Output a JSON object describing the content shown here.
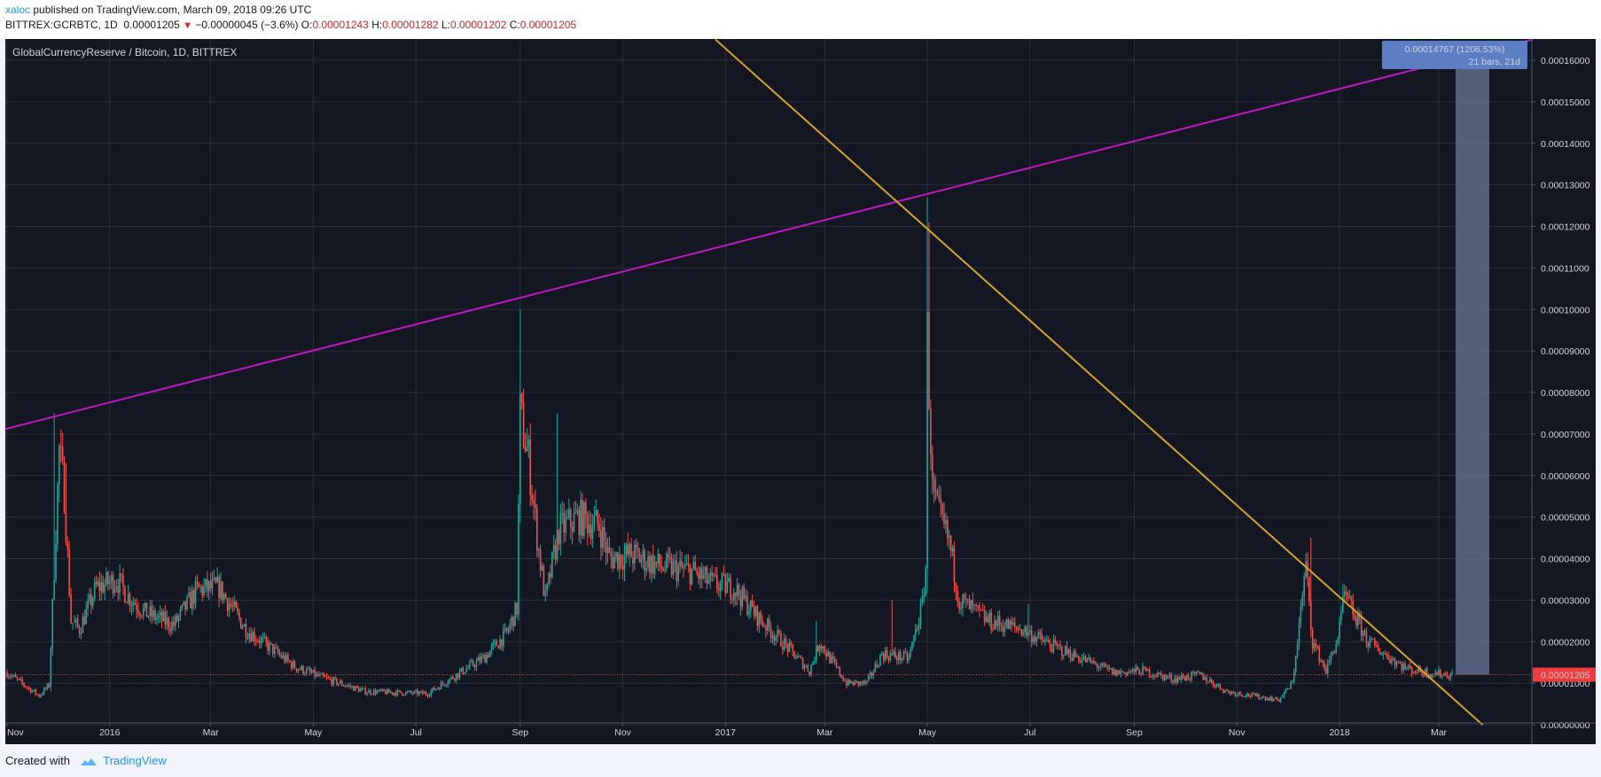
{
  "header": {
    "author": "xaloc",
    "published": " published on TradingView.com, March 09, 2018 09:26 UTC",
    "symbol": "BITTREX:GCRBTC, 1D",
    "last": "0.00001205",
    "change_arrow": "▼",
    "change": "−0.00000045 (−3.6%)",
    "o_label": "O:",
    "o_value": "0.00001243",
    "h_label": "H:",
    "h_value": "0.00001282",
    "l_label": "L:",
    "l_value": "0.00001202",
    "c_label": "C:",
    "c_value": "0.00001205"
  },
  "footer": {
    "created_with": "Created with",
    "brand": "TradingView",
    "logo_icon": "tradingview-logo-icon"
  },
  "colors": {
    "background": "#131722",
    "grid": "#2a2e39",
    "up": "#26a69a",
    "down": "#ef5350",
    "magenta_line": "#c218c2",
    "gold_line": "#d4a52b",
    "measure_fill": "#6b7a99",
    "measure_label": "#5c7fc4",
    "price_label": "#ef3b3b"
  },
  "chart_data": {
    "type": "candlestick",
    "title": "GlobalCurrencyReserve / Bitcoin, 1D, BITTREX",
    "ylim": [
      0.0,
      0.000165
    ],
    "x_ticks": [
      "Nov",
      "2016",
      "Mar",
      "May",
      "Jul",
      "Sep",
      "Nov",
      "2017",
      "Mar",
      "May",
      "Jul",
      "Sep",
      "Nov",
      "2018",
      "Mar"
    ],
    "y_ticks": [
      "0.00000000",
      "0.00001000",
      "0.00002000",
      "0.00003000",
      "0.00004000",
      "0.00005000",
      "0.00006000",
      "0.00007000",
      "0.00008000",
      "0.00009000",
      "0.00010000",
      "0.00011000",
      "0.00012000",
      "0.00013000",
      "0.00014000",
      "0.00015000",
      "0.00016000"
    ],
    "last_price_label": "0.00001205",
    "last_price": 1.205e-05,
    "measure_label_line1": "0.00014767 (1206.53%)",
    "measure_label_line2": "21 bars, 21d",
    "measure_top": 0.00016,
    "anchors": [
      [
        "2015-11-01",
        1.25e-05
      ],
      [
        "2015-11-20",
        7e-06
      ],
      [
        "2015-11-26",
        9.5e-06
      ],
      [
        "2015-12-02",
        6.6e-05
      ],
      [
        "2015-12-05",
        5.6e-05
      ],
      [
        "2015-12-09",
        2.5e-05
      ],
      [
        "2015-12-14",
        2.3e-05
      ],
      [
        "2015-12-24",
        3.3e-05
      ],
      [
        "2016-01-05",
        3.5e-05
      ],
      [
        "2016-01-12",
        3.1e-05
      ],
      [
        "2016-01-22",
        2.7e-05
      ],
      [
        "2016-02-08",
        2.4e-05
      ],
      [
        "2016-02-22",
        3.25e-05
      ],
      [
        "2016-03-06",
        3.3e-05
      ],
      [
        "2016-03-22",
        2.3e-05
      ],
      [
        "2016-04-20",
        1.4e-05
      ],
      [
        "2016-05-05",
        1.15e-05
      ],
      [
        "2016-06-01",
        8e-06
      ],
      [
        "2016-07-08",
        7.5e-06
      ],
      [
        "2016-07-25",
        1.2e-05
      ],
      [
        "2016-08-10",
        1.6e-05
      ],
      [
        "2016-08-24",
        2.2e-05
      ],
      [
        "2016-08-30",
        2.8e-05
      ],
      [
        "2016-09-01",
        7.5e-05
      ],
      [
        "2016-09-06",
        6.4e-05
      ],
      [
        "2016-09-12",
        4.2e-05
      ],
      [
        "2016-09-16",
        3e-05
      ],
      [
        "2016-09-24",
        4.7e-05
      ],
      [
        "2016-10-06",
        5e-05
      ],
      [
        "2016-10-18",
        4.8e-05
      ],
      [
        "2016-10-24",
        4e-05
      ],
      [
        "2016-11-06",
        4.1e-05
      ],
      [
        "2016-11-24",
        3.8e-05
      ],
      [
        "2016-12-12",
        3.7e-05
      ],
      [
        "2016-12-24",
        3.4e-05
      ],
      [
        "2017-01-06",
        3.3e-05
      ],
      [
        "2017-01-20",
        2.6e-05
      ],
      [
        "2017-02-06",
        1.9e-05
      ],
      [
        "2017-02-20",
        1.3e-05
      ],
      [
        "2017-02-26",
        2e-05
      ],
      [
        "2017-03-04",
        1.6e-05
      ],
      [
        "2017-03-14",
        1e-05
      ],
      [
        "2017-03-26",
        1e-05
      ],
      [
        "2017-04-04",
        1.7e-05
      ],
      [
        "2017-04-20",
        1.6e-05
      ],
      [
        "2017-04-28",
        2.9e-05
      ],
      [
        "2017-04-30",
        3.8e-05
      ],
      [
        "2017-05-01",
        9.4e-05
      ],
      [
        "2017-05-04",
        5.6e-05
      ],
      [
        "2017-05-08",
        5e-05
      ],
      [
        "2017-05-14",
        4.4e-05
      ],
      [
        "2017-05-20",
        3e-05
      ],
      [
        "2017-06-06",
        2.5e-05
      ],
      [
        "2017-06-26",
        2.3e-05
      ],
      [
        "2017-07-14",
        1.9e-05
      ],
      [
        "2017-08-06",
        1.5e-05
      ],
      [
        "2017-08-20",
        1.25e-05
      ],
      [
        "2017-09-06",
        1.3e-05
      ],
      [
        "2017-09-24",
        1.1e-05
      ],
      [
        "2017-10-10",
        1.2e-05
      ],
      [
        "2017-10-26",
        8e-06
      ],
      [
        "2017-11-10",
        7e-06
      ],
      [
        "2017-11-26",
        6e-06
      ],
      [
        "2017-12-04",
        1e-05
      ],
      [
        "2017-12-12",
        3.8e-05
      ],
      [
        "2017-12-16",
        2e-05
      ],
      [
        "2017-12-24",
        1.3e-05
      ],
      [
        "2017-12-31",
        2.1e-05
      ],
      [
        "2018-01-04",
        3.1e-05
      ],
      [
        "2018-01-09",
        2.7e-05
      ],
      [
        "2018-01-18",
        2e-05
      ],
      [
        "2018-01-28",
        1.7e-05
      ],
      [
        "2018-02-10",
        1.35e-05
      ],
      [
        "2018-02-24",
        1.25e-05
      ],
      [
        "2018-03-09",
        1.2e-05
      ]
    ],
    "spikes": [
      [
        "2015-11-29",
        7.5e-05
      ],
      [
        "2015-12-06",
        6.3e-05
      ],
      [
        "2016-09-01",
        0.0001
      ],
      [
        "2016-09-02",
        8e-05
      ],
      [
        "2016-09-23",
        7.5e-05
      ],
      [
        "2017-05-01",
        0.000127
      ],
      [
        "2017-05-02",
        0.000121
      ],
      [
        "2017-04-10",
        3e-05
      ],
      [
        "2017-02-24",
        2.5e-05
      ],
      [
        "2017-06-30",
        2.9e-05
      ],
      [
        "2017-12-15",
        4.5e-05
      ],
      [
        "2018-01-03",
        3.4e-05
      ]
    ],
    "trendlines": [
      {
        "name": "magenta-resistance-line",
        "from": [
          "2015-10-29",
          7.1e-05
        ],
        "to": [
          "2018-04-26",
          0.000165
        ]
      },
      {
        "name": "gold-descending-line",
        "from": [
          "2016-12-26",
          0.000165
        ],
        "to": [
          "2018-03-27",
          0.0
        ]
      }
    ],
    "measure_range": [
      "2018-03-11",
      "2018-03-31"
    ],
    "x_range": [
      "2015-10-29",
      "2018-04-28"
    ]
  }
}
